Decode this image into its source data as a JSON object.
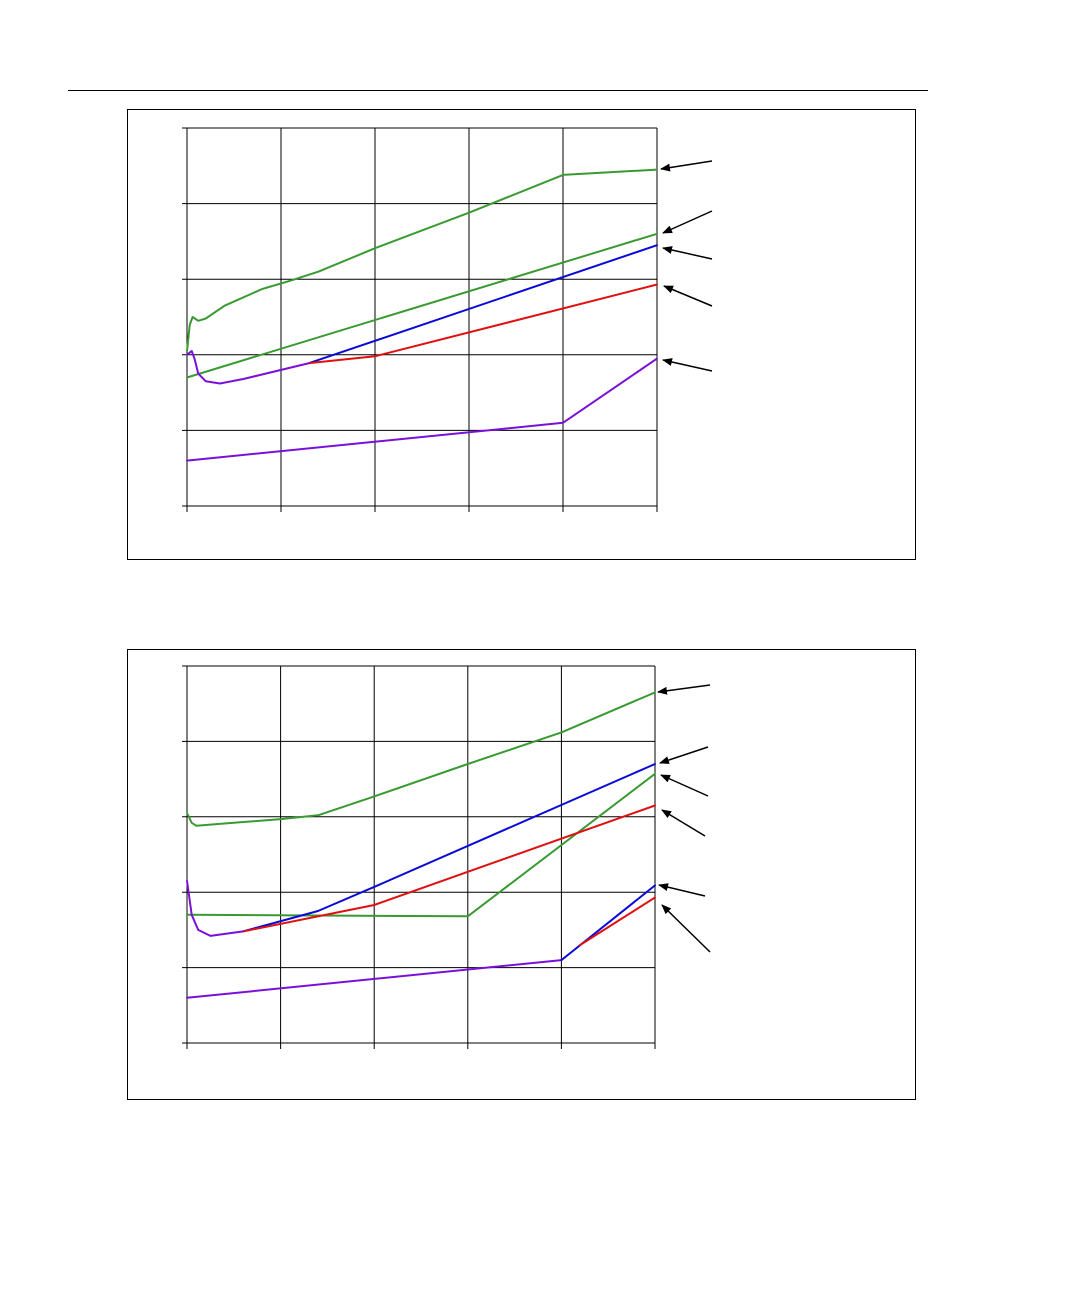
{
  "colors": {
    "green": "#3a9a32",
    "blue": "#0a0ad8",
    "red": "#e01010",
    "purple": "#7a10d8",
    "grid": "#000000",
    "annotation_arrow": "#000000"
  },
  "chart_data": [
    {
      "type": "line",
      "title": "",
      "xlabel": "",
      "ylabel": "",
      "x_ticks": 5,
      "y_ticks": 5,
      "xlim": [
        0,
        5
      ],
      "ylim": [
        0,
        5
      ],
      "grid": true,
      "legend": "none",
      "series": [
        {
          "color": "green",
          "points": [
            [
              0,
              2.05
            ],
            [
              0.03,
              2.4
            ],
            [
              0.06,
              2.5
            ],
            [
              0.12,
              2.45
            ],
            [
              0.2,
              2.48
            ],
            [
              0.4,
              2.65
            ],
            [
              0.8,
              2.87
            ],
            [
              1.1,
              2.98
            ],
            [
              1.4,
              3.1
            ],
            [
              2.0,
              3.41
            ],
            [
              3.0,
              3.88
            ],
            [
              4.0,
              4.38
            ],
            [
              5.0,
              4.45
            ]
          ]
        },
        {
          "color": "green",
          "points": [
            [
              0,
              1.7
            ],
            [
              5.0,
              3.6
            ]
          ]
        },
        {
          "color": "blue",
          "points": [
            [
              1.3,
              1.89
            ],
            [
              5.0,
              3.45
            ]
          ]
        },
        {
          "color": "red",
          "points": [
            [
              1.3,
              1.89
            ],
            [
              2.0,
              1.98
            ],
            [
              5.0,
              2.93
            ]
          ]
        },
        {
          "color": "purple",
          "points": [
            [
              0,
              2.0
            ],
            [
              0.05,
              2.05
            ],
            [
              0.08,
              1.95
            ],
            [
              0.12,
              1.75
            ],
            [
              0.2,
              1.65
            ],
            [
              0.35,
              1.62
            ],
            [
              0.6,
              1.68
            ],
            [
              1.3,
              1.89
            ]
          ]
        },
        {
          "color": "purple",
          "points": [
            [
              0,
              0.6
            ],
            [
              4.0,
              1.1
            ],
            [
              5.0,
              1.95
            ]
          ]
        }
      ],
      "annotation_arrows": 5
    },
    {
      "type": "line",
      "title": "",
      "xlabel": "",
      "ylabel": "",
      "x_ticks": 5,
      "y_ticks": 5,
      "xlim": [
        0,
        5
      ],
      "ylim": [
        0,
        5
      ],
      "grid": true,
      "legend": "none",
      "series": [
        {
          "color": "green",
          "points": [
            [
              0,
              3.05
            ],
            [
              0.05,
              2.92
            ],
            [
              0.1,
              2.88
            ],
            [
              0.5,
              2.92
            ],
            [
              1.0,
              2.97
            ],
            [
              1.4,
              3.02
            ],
            [
              2.0,
              3.27
            ],
            [
              3.0,
              3.7
            ],
            [
              4.0,
              4.12
            ],
            [
              5.0,
              4.65
            ]
          ]
        },
        {
          "color": "green",
          "points": [
            [
              0,
              1.7
            ],
            [
              3.0,
              1.68
            ],
            [
              5.0,
              3.57
            ]
          ]
        },
        {
          "color": "blue",
          "points": [
            [
              0.6,
              1.48
            ],
            [
              1.4,
              1.75
            ],
            [
              2.0,
              2.07
            ],
            [
              5.0,
              3.7
            ]
          ]
        },
        {
          "color": "red",
          "points": [
            [
              0.6,
              1.48
            ],
            [
              2.0,
              1.83
            ],
            [
              5.0,
              3.15
            ]
          ]
        },
        {
          "color": "purple",
          "points": [
            [
              0,
              2.15
            ],
            [
              0.05,
              1.7
            ],
            [
              0.12,
              1.5
            ],
            [
              0.25,
              1.42
            ],
            [
              0.6,
              1.48
            ]
          ]
        },
        {
          "color": "purple",
          "points": [
            [
              0,
              0.6
            ],
            [
              4.0,
              1.1
            ]
          ]
        },
        {
          "color": "blue",
          "points": [
            [
              4.0,
              1.1
            ],
            [
              5.0,
              2.09
            ]
          ]
        },
        {
          "color": "red",
          "points": [
            [
              4.2,
              1.3
            ],
            [
              5.0,
              1.93
            ]
          ]
        }
      ],
      "annotation_arrows": 6
    }
  ]
}
